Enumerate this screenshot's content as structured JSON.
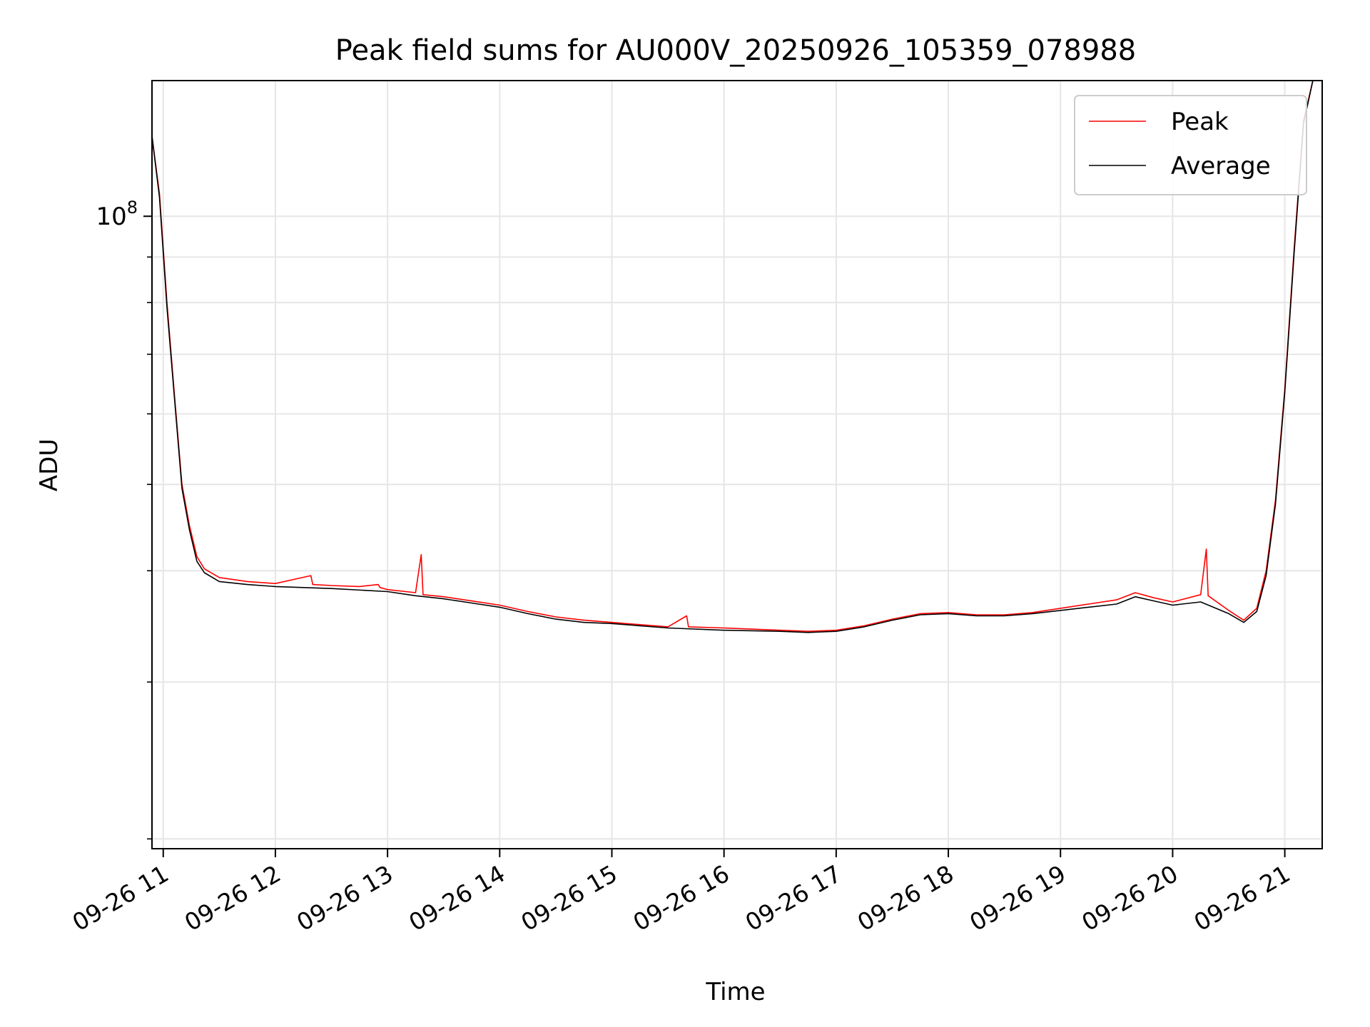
{
  "chart_data": {
    "type": "line",
    "title": "Peak field sums for AU000V_20250926_105359_078988",
    "xlabel": "Time",
    "ylabel": "ADU",
    "x_scale": "time",
    "y_scale": "log",
    "xlim": [
      "2025-09-26 10:53:59",
      "2025-09-26 21:20:00"
    ],
    "ylim": [
      19500000,
      142000000
    ],
    "x_ticks": [
      {
        "value": "2025-09-26 11:00",
        "label": "09-26 11"
      },
      {
        "value": "2025-09-26 12:00",
        "label": "09-26 12"
      },
      {
        "value": "2025-09-26 13:00",
        "label": "09-26 13"
      },
      {
        "value": "2025-09-26 14:00",
        "label": "09-26 14"
      },
      {
        "value": "2025-09-26 15:00",
        "label": "09-26 15"
      },
      {
        "value": "2025-09-26 16:00",
        "label": "09-26 16"
      },
      {
        "value": "2025-09-26 17:00",
        "label": "09-26 17"
      },
      {
        "value": "2025-09-26 18:00",
        "label": "09-26 18"
      },
      {
        "value": "2025-09-26 19:00",
        "label": "09-26 19"
      },
      {
        "value": "2025-09-26 20:00",
        "label": "09-26 20"
      },
      {
        "value": "2025-09-26 21:00",
        "label": "09-26 21"
      }
    ],
    "y_major_ticks": [
      {
        "value": 100000000,
        "base": "10",
        "exp": "8"
      }
    ],
    "y_minor_ticks": [
      20000000,
      30000000,
      40000000,
      50000000,
      60000000,
      70000000,
      80000000,
      90000000
    ],
    "grid": true,
    "legend": {
      "position": "top-right"
    },
    "series": [
      {
        "name": "Peak",
        "color": "#ff0000",
        "points": [
          [
            "2025-09-26 10:54",
            123000000
          ],
          [
            "2025-09-26 10:58",
            106000000
          ],
          [
            "2025-09-26 11:02",
            80000000
          ],
          [
            "2025-09-26 11:06",
            63000000
          ],
          [
            "2025-09-26 11:10",
            50000000
          ],
          [
            "2025-09-26 11:14",
            45000000
          ],
          [
            "2025-09-26 11:18",
            41500000
          ],
          [
            "2025-09-26 11:22",
            40200000
          ],
          [
            "2025-09-26 11:30",
            39300000
          ],
          [
            "2025-09-26 11:45",
            38900000
          ],
          [
            "2025-09-26 12:00",
            38700000
          ],
          [
            "2025-09-26 12:19",
            39500000
          ],
          [
            "2025-09-26 12:20",
            38600000
          ],
          [
            "2025-09-26 12:30",
            38500000
          ],
          [
            "2025-09-26 12:45",
            38400000
          ],
          [
            "2025-09-26 12:55",
            38600000
          ],
          [
            "2025-09-26 12:56",
            38300000
          ],
          [
            "2025-09-26 13:00",
            38100000
          ],
          [
            "2025-09-26 13:15",
            37800000
          ],
          [
            "2025-09-26 13:18",
            41700000
          ],
          [
            "2025-09-26 13:19",
            37600000
          ],
          [
            "2025-09-26 13:30",
            37400000
          ],
          [
            "2025-09-26 13:45",
            37000000
          ],
          [
            "2025-09-26 14:00",
            36600000
          ],
          [
            "2025-09-26 14:15",
            36000000
          ],
          [
            "2025-09-26 14:30",
            35500000
          ],
          [
            "2025-09-26 14:45",
            35200000
          ],
          [
            "2025-09-26 15:00",
            35000000
          ],
          [
            "2025-09-26 15:15",
            34800000
          ],
          [
            "2025-09-26 15:30",
            34600000
          ],
          [
            "2025-09-26 15:40",
            35600000
          ],
          [
            "2025-09-26 15:41",
            34600000
          ],
          [
            "2025-09-26 16:00",
            34500000
          ],
          [
            "2025-09-26 16:15",
            34400000
          ],
          [
            "2025-09-26 16:30",
            34300000
          ],
          [
            "2025-09-26 16:45",
            34200000
          ],
          [
            "2025-09-26 17:00",
            34300000
          ],
          [
            "2025-09-26 17:15",
            34700000
          ],
          [
            "2025-09-26 17:30",
            35300000
          ],
          [
            "2025-09-26 17:45",
            35800000
          ],
          [
            "2025-09-26 18:00",
            35900000
          ],
          [
            "2025-09-26 18:15",
            35700000
          ],
          [
            "2025-09-26 18:30",
            35700000
          ],
          [
            "2025-09-26 18:45",
            35900000
          ],
          [
            "2025-09-26 19:00",
            36300000
          ],
          [
            "2025-09-26 19:15",
            36700000
          ],
          [
            "2025-09-26 19:30",
            37100000
          ],
          [
            "2025-09-26 19:40",
            37800000
          ],
          [
            "2025-09-26 19:50",
            37300000
          ],
          [
            "2025-09-26 20:00",
            36900000
          ],
          [
            "2025-09-26 20:15",
            37600000
          ],
          [
            "2025-09-26 20:18",
            42300000
          ],
          [
            "2025-09-26 20:19",
            37500000
          ],
          [
            "2025-09-26 20:30",
            36100000
          ],
          [
            "2025-09-26 20:38",
            35200000
          ],
          [
            "2025-09-26 20:45",
            36300000
          ],
          [
            "2025-09-26 20:50",
            40000000
          ],
          [
            "2025-09-26 20:55",
            48000000
          ],
          [
            "2025-09-26 21:00",
            64000000
          ],
          [
            "2025-09-26 21:05",
            92000000
          ],
          [
            "2025-09-26 21:10",
            128000000
          ],
          [
            "2025-09-26 21:15",
            142000000
          ]
        ]
      },
      {
        "name": "Average",
        "color": "#000000",
        "points": [
          [
            "2025-09-26 10:54",
            123000000
          ],
          [
            "2025-09-26 10:58",
            105000000
          ],
          [
            "2025-09-26 11:02",
            79000000
          ],
          [
            "2025-09-26 11:06",
            62500000
          ],
          [
            "2025-09-26 11:10",
            49500000
          ],
          [
            "2025-09-26 11:14",
            44500000
          ],
          [
            "2025-09-26 11:18",
            41000000
          ],
          [
            "2025-09-26 11:22",
            39800000
          ],
          [
            "2025-09-26 11:30",
            38900000
          ],
          [
            "2025-09-26 11:45",
            38600000
          ],
          [
            "2025-09-26 12:00",
            38400000
          ],
          [
            "2025-09-26 12:30",
            38200000
          ],
          [
            "2025-09-26 13:00",
            37900000
          ],
          [
            "2025-09-26 13:15",
            37500000
          ],
          [
            "2025-09-26 13:30",
            37200000
          ],
          [
            "2025-09-26 13:45",
            36800000
          ],
          [
            "2025-09-26 14:00",
            36400000
          ],
          [
            "2025-09-26 14:15",
            35800000
          ],
          [
            "2025-09-26 14:30",
            35300000
          ],
          [
            "2025-09-26 14:45",
            35000000
          ],
          [
            "2025-09-26 15:00",
            34900000
          ],
          [
            "2025-09-26 15:15",
            34700000
          ],
          [
            "2025-09-26 15:30",
            34500000
          ],
          [
            "2025-09-26 16:00",
            34300000
          ],
          [
            "2025-09-26 16:30",
            34200000
          ],
          [
            "2025-09-26 16:45",
            34100000
          ],
          [
            "2025-09-26 17:00",
            34200000
          ],
          [
            "2025-09-26 17:15",
            34600000
          ],
          [
            "2025-09-26 17:30",
            35200000
          ],
          [
            "2025-09-26 17:45",
            35700000
          ],
          [
            "2025-09-26 18:00",
            35800000
          ],
          [
            "2025-09-26 18:15",
            35600000
          ],
          [
            "2025-09-26 18:30",
            35600000
          ],
          [
            "2025-09-26 18:45",
            35800000
          ],
          [
            "2025-09-26 19:00",
            36100000
          ],
          [
            "2025-09-26 19:15",
            36400000
          ],
          [
            "2025-09-26 19:30",
            36700000
          ],
          [
            "2025-09-26 19:40",
            37400000
          ],
          [
            "2025-09-26 19:50",
            37000000
          ],
          [
            "2025-09-26 20:00",
            36600000
          ],
          [
            "2025-09-26 20:15",
            36900000
          ],
          [
            "2025-09-26 20:30",
            35800000
          ],
          [
            "2025-09-26 20:38",
            35000000
          ],
          [
            "2025-09-26 20:45",
            36000000
          ],
          [
            "2025-09-26 20:50",
            39500000
          ],
          [
            "2025-09-26 20:55",
            47500000
          ],
          [
            "2025-09-26 21:00",
            63500000
          ],
          [
            "2025-09-26 21:05",
            91000000
          ],
          [
            "2025-09-26 21:10",
            127000000
          ],
          [
            "2025-09-26 21:15",
            142000000
          ]
        ]
      }
    ]
  }
}
